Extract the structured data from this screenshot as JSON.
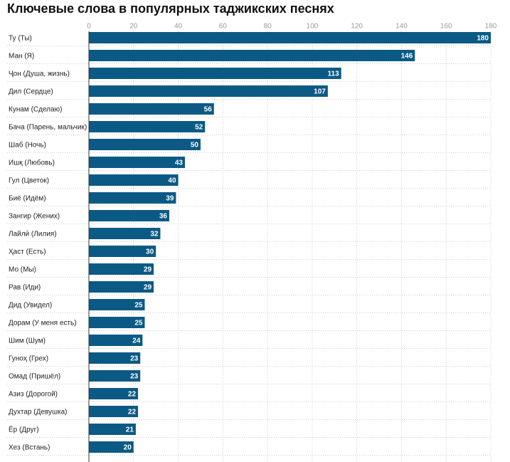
{
  "chart_data": {
    "type": "barh",
    "title": "Ключевые слова в популярных таджикских песнях",
    "categories": [
      "Ту (Ты)",
      "Ман (Я)",
      "Ҷон (Душа, жизнь)",
      "Дил (Сердце)",
      "Кунам (Сделаю)",
      "Бача (Парень, мальчик)",
      "Шаб (Ночь)",
      "Ишқ (Любовь)",
      "Гул (Цветок)",
      "Биё (Идём)",
      "Зангир (Жених)",
      "Лайлӣ (Лилия)",
      "Ҳаст (Есть)",
      "Мо (Мы)",
      "Рав (Иди)",
      "Дид (Увидел)",
      "Дорам (У меня есть)",
      "Шим (Шум)",
      "Гуноҳ (Грех)",
      "Омад (Пришёл)",
      "Азиз (Дорогой)",
      "Духтар (Девушка)",
      "Ёр (Друг)",
      "Хез (Встань)"
    ],
    "values": [
      180,
      146,
      113,
      107,
      56,
      52,
      50,
      43,
      40,
      39,
      36,
      32,
      30,
      29,
      29,
      25,
      25,
      24,
      23,
      23,
      22,
      22,
      21,
      20
    ],
    "color": "#0b5a85",
    "xlim": [
      0,
      180
    ],
    "xticks": [
      0,
      20,
      40,
      60,
      80,
      100,
      120,
      140,
      160,
      180
    ],
    "grid": true
  }
}
